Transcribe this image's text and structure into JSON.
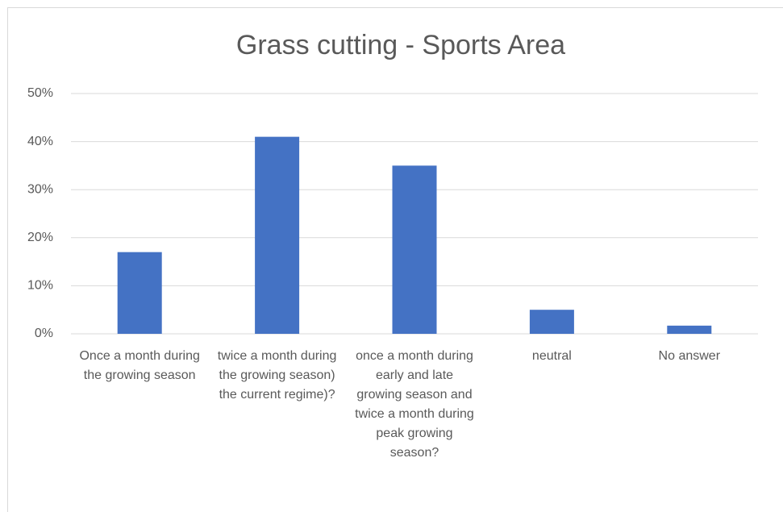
{
  "chart_data": {
    "type": "bar",
    "title": "Grass cutting - Sports Area",
    "categories": [
      "Once a month during the growing season",
      "twice a month during the growing season) the current regime)?",
      "once a month during early and late growing season and twice a month during peak growing season?",
      "neutral",
      "No answer"
    ],
    "values": [
      17,
      41,
      35,
      5,
      1.7
    ],
    "color": "#4472c4",
    "ylim": [
      0,
      50
    ],
    "yticks": [
      {
        "value": 0,
        "label": "0%"
      },
      {
        "value": 10,
        "label": "10%"
      },
      {
        "value": 20,
        "label": "20%"
      },
      {
        "value": 30,
        "label": "30%"
      },
      {
        "value": 40,
        "label": "40%"
      },
      {
        "value": 50,
        "label": "50%"
      }
    ],
    "grid": true
  }
}
